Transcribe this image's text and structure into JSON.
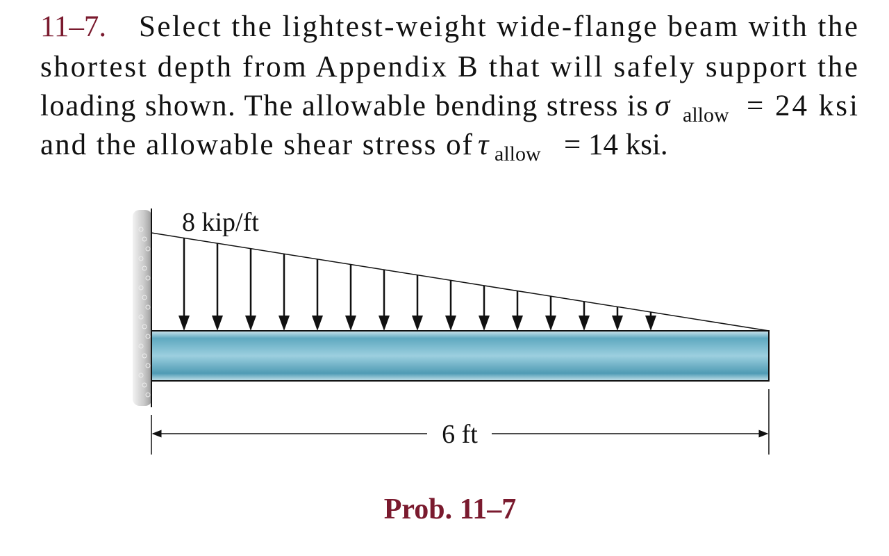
{
  "problem": {
    "number": "11–7.",
    "lines": [
      "Select the lightest-weight wide-flange beam with the",
      "shortest depth from Appendix B that will safely support the",
      "loading shown. The allowable bending stress is",
      "and the allowable shear stress of"
    ],
    "bending_symbol": "σ",
    "bending_subscript": "allow",
    "bending_value": "= 24 ksi",
    "shear_symbol": "τ",
    "shear_subscript": "allow",
    "shear_value": "= 14 ksi."
  },
  "figure": {
    "load_label": "8 kip/ft",
    "span_label": "6 ft",
    "caption": "Prob. 11–7"
  }
}
